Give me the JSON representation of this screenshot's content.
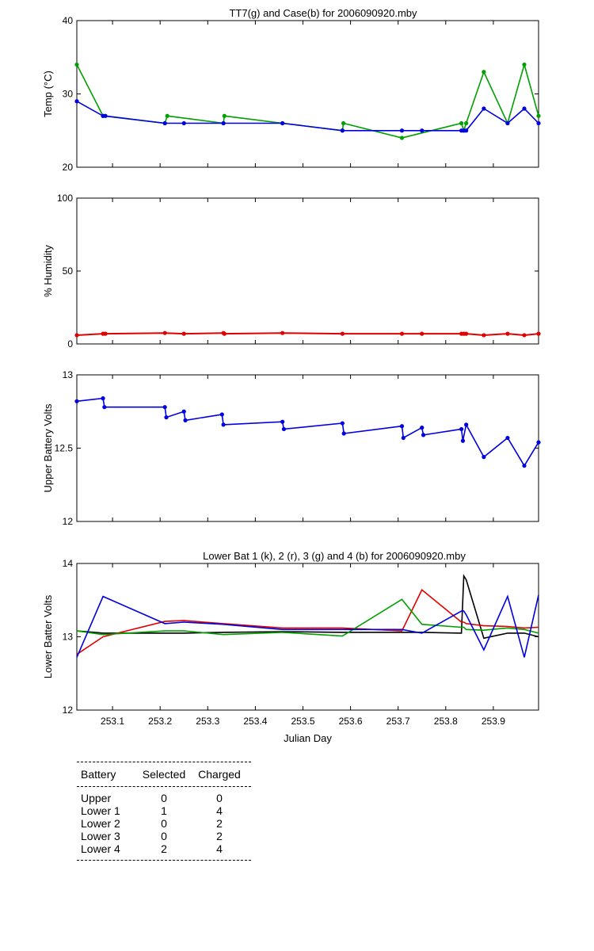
{
  "chart_data": [
    {
      "type": "line",
      "title": "TT7(g) and Case(b) for 2006090920.mby",
      "xlabel": "",
      "ylabel": "Temp  (°C)",
      "xlim": [
        253.025,
        253.995
      ],
      "ylim": [
        20,
        40
      ],
      "yticks": [
        "20",
        "30",
        "40"
      ],
      "series": [
        {
          "name": "TT7",
          "color": "#00a000",
          "marker": true,
          "x": [
            253.025,
            253.08,
            253.21,
            253.215,
            253.333,
            253.335,
            253.457,
            253.583,
            253.585,
            253.708,
            253.833,
            253.838,
            253.843,
            253.88,
            253.93,
            253.965,
            253.995
          ],
          "y": [
            34,
            27,
            26,
            27,
            26,
            27,
            26,
            25,
            26,
            24,
            26,
            25,
            26,
            33,
            26,
            34,
            27
          ]
        },
        {
          "name": "Case",
          "color": "#0000e0",
          "marker": true,
          "x": [
            253.025,
            253.08,
            253.085,
            253.21,
            253.25,
            253.333,
            253.457,
            253.583,
            253.708,
            253.75,
            253.833,
            253.838,
            253.843,
            253.88,
            253.93,
            253.965,
            253.995
          ],
          "y": [
            29,
            27,
            27,
            26,
            26,
            26,
            26,
            25,
            25,
            25,
            25,
            25,
            25,
            28,
            26,
            28,
            26
          ]
        }
      ]
    },
    {
      "type": "line",
      "title": "",
      "xlabel": "",
      "ylabel": "% Humidity",
      "xlim": [
        253.025,
        253.995
      ],
      "ylim": [
        0,
        100
      ],
      "yticks": [
        "0",
        "50",
        "100"
      ],
      "series": [
        {
          "name": "Humidity",
          "color": "#e00000",
          "marker": true,
          "x": [
            253.025,
            253.08,
            253.085,
            253.21,
            253.25,
            253.333,
            253.335,
            253.457,
            253.583,
            253.708,
            253.75,
            253.833,
            253.838,
            253.843,
            253.88,
            253.93,
            253.965,
            253.995
          ],
          "y": [
            6,
            7,
            7,
            7.5,
            7,
            7.5,
            7,
            7.5,
            7,
            7,
            7,
            7,
            7,
            7,
            6,
            7,
            6,
            7
          ]
        }
      ]
    },
    {
      "type": "line",
      "title": "",
      "xlabel": "",
      "ylabel": "Upper Battery Volts",
      "xlim": [
        253.025,
        253.995
      ],
      "ylim": [
        12,
        13
      ],
      "yticks": [
        "12",
        "12.5",
        "13"
      ],
      "series": [
        {
          "name": "Upper",
          "color": "#0000e0",
          "marker": true,
          "x": [
            253.025,
            253.08,
            253.083,
            253.21,
            253.213,
            253.25,
            253.253,
            253.33,
            253.333,
            253.457,
            253.46,
            253.583,
            253.586,
            253.708,
            253.711,
            253.75,
            253.753,
            253.833,
            253.836,
            253.843,
            253.88,
            253.93,
            253.965,
            253.995
          ],
          "y": [
            12.82,
            12.84,
            12.78,
            12.78,
            12.71,
            12.75,
            12.69,
            12.73,
            12.66,
            12.68,
            12.63,
            12.67,
            12.6,
            12.65,
            12.57,
            12.64,
            12.59,
            12.63,
            12.55,
            12.66,
            12.44,
            12.57,
            12.38,
            12.54
          ]
        }
      ]
    },
    {
      "type": "line",
      "title": "Lower Bat 1 (k), 2 (r), 3 (g) and 4 (b) for 2006090920.mby",
      "xlabel": "Julian Day",
      "ylabel": "Lower Batter Volts",
      "xlim": [
        253.025,
        253.995
      ],
      "ylim": [
        12,
        14
      ],
      "yticks": [
        "12",
        "13",
        "14"
      ],
      "xticks": [
        "253.1",
        "253.2",
        "253.3",
        "253.4",
        "253.5",
        "253.6",
        "253.7",
        "253.8",
        "253.9"
      ],
      "series": [
        {
          "name": "Lower 1",
          "color": "#000000",
          "marker": false,
          "x": [
            253.025,
            253.08,
            253.21,
            253.25,
            253.333,
            253.457,
            253.583,
            253.708,
            253.75,
            253.833,
            253.838,
            253.843,
            253.88,
            253.93,
            253.965,
            253.995
          ],
          "y": [
            13.08,
            13.05,
            13.05,
            13.05,
            13.06,
            13.07,
            13.06,
            13.06,
            13.06,
            13.05,
            13.83,
            13.78,
            12.98,
            13.05,
            13.05,
            13.0
          ]
        },
        {
          "name": "Lower 2",
          "color": "#e00000",
          "marker": false,
          "x": [
            253.025,
            253.08,
            253.21,
            253.25,
            253.333,
            253.457,
            253.583,
            253.708,
            253.75,
            253.833,
            253.838,
            253.843,
            253.88,
            253.93,
            253.965,
            253.995
          ],
          "y": [
            12.76,
            13.0,
            13.21,
            13.22,
            13.18,
            13.12,
            13.12,
            13.08,
            13.64,
            13.2,
            13.2,
            13.18,
            13.15,
            13.14,
            13.12,
            13.13
          ]
        },
        {
          "name": "Lower 3",
          "color": "#00a000",
          "marker": false,
          "x": [
            253.025,
            253.08,
            253.21,
            253.25,
            253.333,
            253.457,
            253.583,
            253.708,
            253.75,
            253.833,
            253.838,
            253.843,
            253.88,
            253.93,
            253.965,
            253.995
          ],
          "y": [
            13.08,
            13.03,
            13.08,
            13.08,
            13.03,
            13.06,
            13.01,
            13.51,
            13.17,
            13.13,
            13.13,
            13.1,
            13.09,
            13.12,
            13.1,
            13.05
          ]
        },
        {
          "name": "Lower 4",
          "color": "#0000e0",
          "marker": false,
          "x": [
            253.025,
            253.08,
            253.21,
            253.25,
            253.333,
            253.457,
            253.583,
            253.708,
            253.75,
            253.833,
            253.838,
            253.843,
            253.88,
            253.93,
            253.965,
            253.995
          ],
          "y": [
            12.72,
            13.55,
            13.18,
            13.2,
            13.17,
            13.1,
            13.1,
            13.1,
            13.05,
            13.35,
            13.35,
            13.3,
            12.82,
            13.55,
            12.72,
            13.57
          ]
        }
      ]
    }
  ],
  "table": {
    "headers": [
      "Battery",
      "Selected",
      "Charged"
    ],
    "rows": [
      [
        "Upper",
        "0",
        "0"
      ],
      [
        "Lower 1",
        "1",
        "4"
      ],
      [
        "Lower 2",
        "0",
        "2"
      ],
      [
        "Lower 3",
        "0",
        "2"
      ],
      [
        "Lower 4",
        "2",
        "4"
      ]
    ]
  }
}
